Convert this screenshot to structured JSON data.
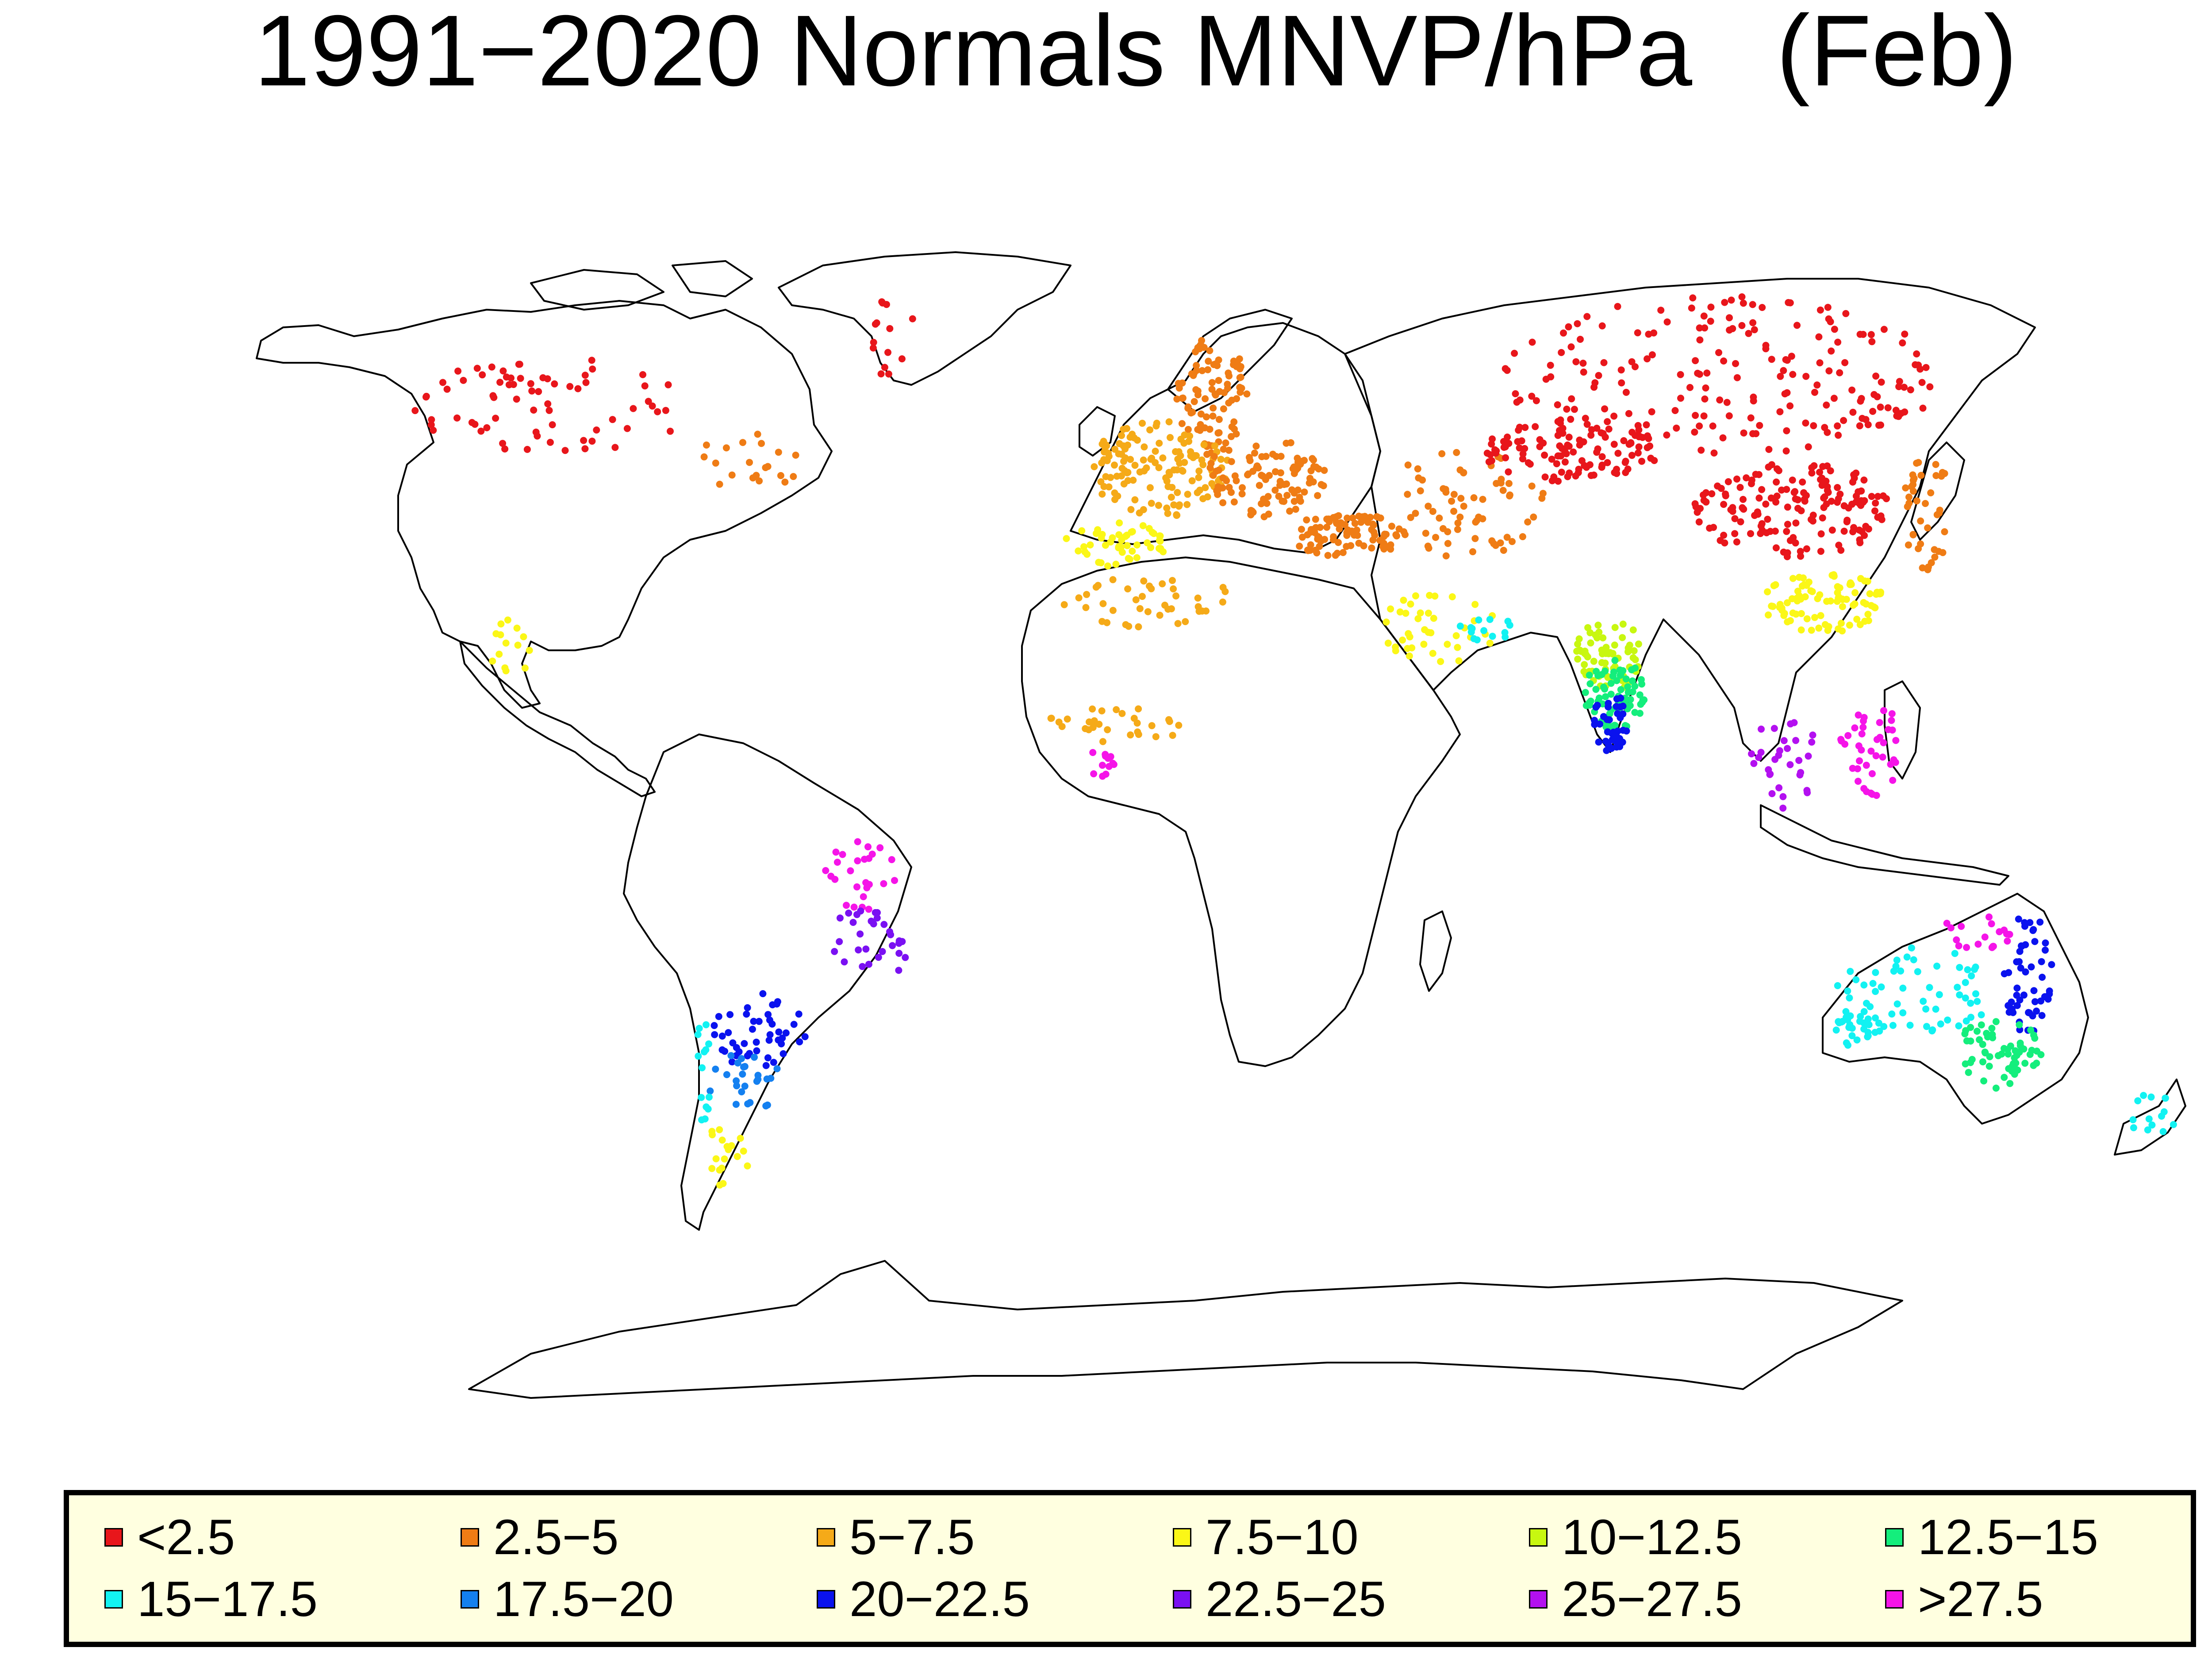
{
  "title": "1991−2020 Normals MNVP/hPa   (Feb)",
  "legend": [
    {
      "label": "<2.5",
      "color": "#e8161b"
    },
    {
      "label": "2.5−5",
      "color": "#ef7c15"
    },
    {
      "label": "5−7.5",
      "color": "#f5aa18"
    },
    {
      "label": "7.5−10",
      "color": "#fbf717"
    },
    {
      "label": "10−12.5",
      "color": "#c8f710"
    },
    {
      "label": "12.5−15",
      "color": "#14ee7c"
    },
    {
      "label": "15−17.5",
      "color": "#12f2f2"
    },
    {
      "label": "17.5−20",
      "color": "#1480f0"
    },
    {
      "label": "20−22.5",
      "color": "#0a12ee"
    },
    {
      "label": "22.5−25",
      "color": "#7a10f2"
    },
    {
      "label": "25−27.5",
      "color": "#b310f0"
    },
    {
      "label": ">27.5",
      "color": "#f514e8"
    }
  ]
}
